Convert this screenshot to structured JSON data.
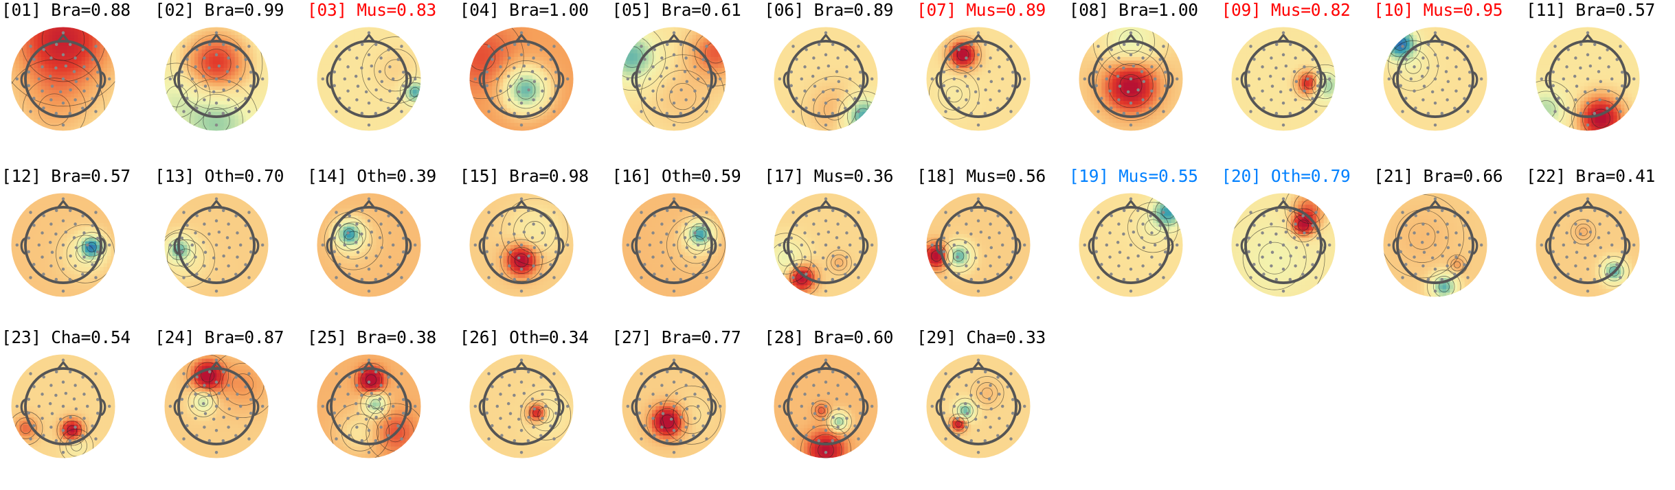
{
  "colors": {
    "default": "#000000",
    "flag_red": "#ff0000",
    "flag_blue": "#0080ff",
    "cmap": [
      "#2c64b4",
      "#3aa0b0",
      "#9bd0a4",
      "#f2f4b0",
      "#fbe39a",
      "#f6a05a",
      "#e2392a",
      "#b81233"
    ]
  },
  "components": [
    {
      "index": "[01]",
      "label": "Bra",
      "score": "0.88",
      "flag": "default",
      "base": 0.15,
      "blobs": [
        [
          0,
          -0.9,
          0.8,
          1.0
        ],
        [
          -0.2,
          0.7,
          0.6,
          0.25
        ]
      ]
    },
    {
      "index": "[02]",
      "label": "Bra",
      "score": "0.99",
      "flag": "default",
      "base": 0.0,
      "blobs": [
        [
          0,
          -0.35,
          0.55,
          0.95
        ],
        [
          0,
          0.95,
          0.5,
          -0.6
        ],
        [
          -0.9,
          0.4,
          0.4,
          -0.3
        ]
      ]
    },
    {
      "index": "[03]",
      "label": "Mus",
      "score": "0.83",
      "flag": "red",
      "base": 0.15,
      "blobs": [
        [
          1.05,
          0.3,
          0.18,
          -1.0
        ],
        [
          0.6,
          -0.2,
          0.4,
          0.12
        ]
      ]
    },
    {
      "index": "[04]",
      "label": "Bra",
      "score": "1.00",
      "flag": "default",
      "base": 0.55,
      "blobs": [
        [
          0.1,
          0.25,
          0.35,
          -1.3
        ],
        [
          -0.9,
          -0.5,
          0.5,
          0.3
        ]
      ]
    },
    {
      "index": "[05]",
      "label": "Bra",
      "score": "0.61",
      "flag": "default",
      "base": 0.2,
      "blobs": [
        [
          -0.95,
          -0.5,
          0.4,
          -0.95
        ],
        [
          0.95,
          -0.6,
          0.4,
          0.6
        ],
        [
          0.2,
          0.4,
          0.5,
          0.15
        ]
      ]
    },
    {
      "index": "[06]",
      "label": "Bra",
      "score": "0.89",
      "flag": "default",
      "base": 0.2,
      "blobs": [
        [
          0.85,
          0.85,
          0.3,
          -1.1
        ],
        [
          0.2,
          0.7,
          0.4,
          0.25
        ]
      ]
    },
    {
      "index": "[07]",
      "label": "Mus",
      "score": "0.89",
      "flag": "red",
      "base": 0.2,
      "blobs": [
        [
          -0.35,
          -0.55,
          0.22,
          1.2
        ],
        [
          -0.55,
          0.35,
          0.3,
          -0.15
        ]
      ]
    },
    {
      "index": "[08]",
      "label": "Bra",
      "score": "1.00",
      "flag": "default",
      "base": 0.3,
      "blobs": [
        [
          0,
          0.15,
          0.42,
          1.1
        ],
        [
          0,
          -0.85,
          0.45,
          -0.6
        ]
      ]
    },
    {
      "index": "[09]",
      "label": "Mus",
      "score": "0.82",
      "flag": "red",
      "base": 0.15,
      "blobs": [
        [
          0.6,
          0.1,
          0.2,
          1.1
        ],
        [
          0.95,
          0.15,
          0.25,
          -0.8
        ]
      ]
    },
    {
      "index": "[10]",
      "label": "Mus",
      "score": "0.95",
      "flag": "red",
      "base": 0.2,
      "blobs": [
        [
          -0.8,
          -0.8,
          0.25,
          -1.4
        ],
        [
          -0.5,
          -0.3,
          0.3,
          -0.2
        ]
      ]
    },
    {
      "index": "[11]",
      "label": "Bra",
      "score": "0.57",
      "flag": "default",
      "base": 0.15,
      "blobs": [
        [
          0.3,
          0.9,
          0.35,
          1.2
        ],
        [
          -0.95,
          0.7,
          0.35,
          -0.6
        ]
      ]
    },
    {
      "index": "[12]",
      "label": "Bra",
      "score": "0.57",
      "flag": "default",
      "base": 0.35,
      "blobs": [
        [
          0.65,
          0.05,
          0.18,
          -1.3
        ],
        [
          0.5,
          0.2,
          0.35,
          -0.3
        ]
      ]
    },
    {
      "index": "[13]",
      "label": "Oth",
      "score": "0.70",
      "flag": "default",
      "base": 0.3,
      "blobs": [
        [
          -0.85,
          0.1,
          0.2,
          -0.9
        ],
        [
          -0.7,
          0.3,
          0.35,
          -0.2
        ]
      ]
    },
    {
      "index": "[14]",
      "label": "Oth",
      "score": "0.39",
      "flag": "default",
      "base": 0.4,
      "blobs": [
        [
          -0.45,
          -0.25,
          0.2,
          -1.2
        ],
        [
          -0.35,
          -0.1,
          0.35,
          -0.2
        ]
      ]
    },
    {
      "index": "[15]",
      "label": "Bra",
      "score": "0.98",
      "flag": "default",
      "base": 0.3,
      "blobs": [
        [
          0.0,
          0.35,
          0.25,
          1.1
        ],
        [
          0.3,
          -0.3,
          0.4,
          -0.25
        ]
      ]
    },
    {
      "index": "[16]",
      "label": "Oth",
      "score": "0.59",
      "flag": "default",
      "base": 0.4,
      "blobs": [
        [
          0.6,
          -0.25,
          0.2,
          -1.2
        ],
        [
          0.5,
          0.0,
          0.35,
          -0.15
        ]
      ]
    },
    {
      "index": "[17]",
      "label": "Mus",
      "score": "0.36",
      "flag": "default",
      "base": 0.25,
      "blobs": [
        [
          -0.55,
          0.75,
          0.22,
          1.1
        ],
        [
          -0.9,
          0.3,
          0.3,
          -0.5
        ],
        [
          0.3,
          0.4,
          0.15,
          0.2
        ]
      ]
    },
    {
      "index": "[18]",
      "label": "Mus",
      "score": "0.56",
      "flag": "default",
      "base": 0.3,
      "blobs": [
        [
          -0.45,
          0.25,
          0.2,
          -1.1
        ],
        [
          -0.95,
          0.25,
          0.2,
          1.1
        ]
      ]
    },
    {
      "index": "[19]",
      "label": "Mus",
      "score": "0.55",
      "flag": "blue",
      "base": 0.2,
      "blobs": [
        [
          0.85,
          -0.75,
          0.25,
          -1.1
        ],
        [
          0.5,
          -0.4,
          0.3,
          -0.2
        ]
      ]
    },
    {
      "index": "[20]",
      "label": "Oth",
      "score": "0.79",
      "flag": "blue",
      "base": 0.1,
      "blobs": [
        [
          0.45,
          -0.45,
          0.2,
          1.1
        ],
        [
          0.6,
          -0.85,
          0.3,
          0.6
        ],
        [
          -0.2,
          0.3,
          0.6,
          -0.25
        ]
      ]
    },
    {
      "index": "[21]",
      "label": "Bra",
      "score": "0.66",
      "flag": "default",
      "base": 0.3,
      "blobs": [
        [
          0.2,
          0.95,
          0.2,
          -1.1
        ],
        [
          0.5,
          0.45,
          0.12,
          0.25
        ],
        [
          -0.3,
          -0.2,
          0.5,
          0.1
        ]
      ]
    },
    {
      "index": "[22]",
      "label": "Bra",
      "score": "0.41",
      "flag": "default",
      "base": 0.3,
      "blobs": [
        [
          0.6,
          0.6,
          0.18,
          -1.1
        ],
        [
          -0.1,
          -0.3,
          0.15,
          0.15
        ]
      ]
    },
    {
      "index": "[23]",
      "label": "Cha",
      "score": "0.54",
      "flag": "default",
      "base": 0.25,
      "blobs": [
        [
          0.2,
          0.55,
          0.18,
          1.1
        ],
        [
          -0.85,
          0.5,
          0.2,
          0.5
        ],
        [
          0.3,
          0.9,
          0.2,
          -0.3
        ]
      ]
    },
    {
      "index": "[24]",
      "label": "Bra",
      "score": "0.87",
      "flag": "default",
      "base": 0.3,
      "blobs": [
        [
          -0.2,
          -0.7,
          0.25,
          1.1
        ],
        [
          -0.3,
          -0.1,
          0.18,
          -0.7
        ],
        [
          0.6,
          -0.5,
          0.4,
          0.3
        ]
      ]
    },
    {
      "index": "[25]",
      "label": "Bra",
      "score": "0.38",
      "flag": "default",
      "base": 0.45,
      "blobs": [
        [
          0.05,
          -0.6,
          0.2,
          1.1
        ],
        [
          0.15,
          -0.05,
          0.18,
          -1.0
        ],
        [
          -0.2,
          0.6,
          0.35,
          -0.3
        ],
        [
          0.6,
          0.6,
          0.35,
          0.4
        ]
      ]
    },
    {
      "index": "[26]",
      "label": "Oth",
      "score": "0.34",
      "flag": "default",
      "base": 0.25,
      "blobs": [
        [
          0.35,
          0.15,
          0.15,
          1.0
        ],
        [
          0.55,
          0.2,
          0.3,
          -0.25
        ]
      ]
    },
    {
      "index": "[27]",
      "label": "Bra",
      "score": "0.77",
      "flag": "default",
      "base": 0.3,
      "blobs": [
        [
          -0.15,
          0.35,
          0.25,
          1.2
        ],
        [
          0.4,
          0.2,
          0.35,
          -0.1
        ]
      ]
    },
    {
      "index": "[28]",
      "label": "Bra",
      "score": "0.60",
      "flag": "default",
      "base": 0.4,
      "blobs": [
        [
          0.3,
          0.35,
          0.15,
          -1.0
        ],
        [
          -0.1,
          0.1,
          0.12,
          0.4
        ],
        [
          0.0,
          1.0,
          0.3,
          0.9
        ]
      ]
    },
    {
      "index": "[29]",
      "label": "Cha",
      "score": "0.33",
      "flag": "default",
      "base": 0.25,
      "blobs": [
        [
          -0.3,
          0.1,
          0.15,
          -1.0
        ],
        [
          -0.45,
          0.4,
          0.12,
          1.0
        ],
        [
          0.2,
          -0.3,
          0.2,
          0.15
        ]
      ]
    }
  ]
}
